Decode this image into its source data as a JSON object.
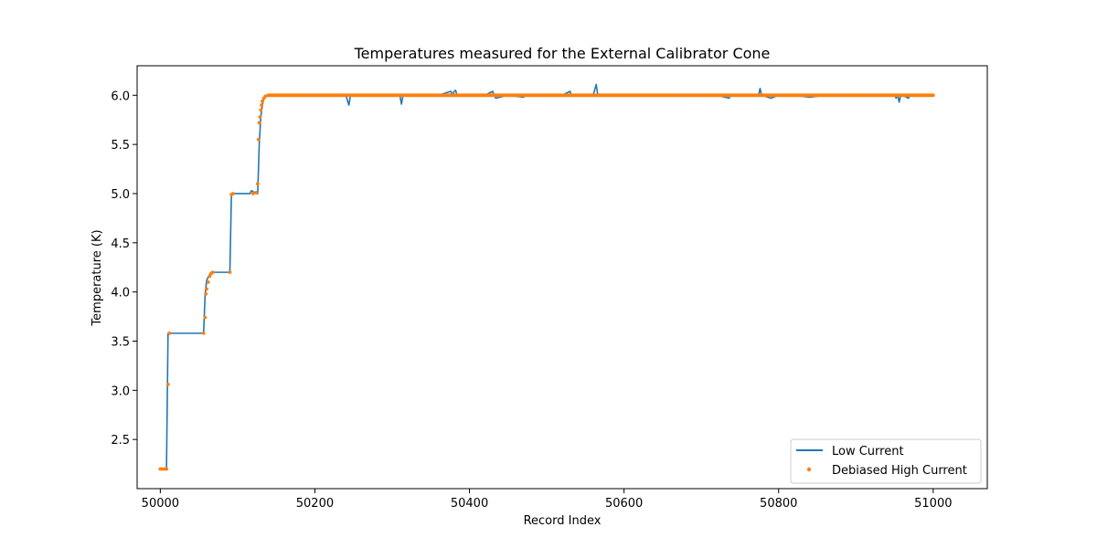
{
  "chart_data": {
    "type": "line",
    "title": "Temperatures measured for the External Calibrator Cone",
    "xlabel": "Record Index",
    "ylabel": "Temperature (K)",
    "xlim": [
      49970,
      51070
    ],
    "ylim": [
      2.0,
      6.3
    ],
    "xticks": [
      50000,
      50200,
      50400,
      50600,
      50800,
      51000
    ],
    "yticks": [
      2.5,
      3.0,
      3.5,
      4.0,
      4.5,
      5.0,
      5.5,
      6.0
    ],
    "xtick_labels": [
      "50000",
      "50200",
      "50400",
      "50600",
      "50800",
      "51000"
    ],
    "ytick_labels": [
      "2.5",
      "3.0",
      "3.5",
      "4.0",
      "4.5",
      "5.0",
      "5.5",
      "6.0"
    ],
    "grid": false,
    "legend_position": "lower-right",
    "colors": {
      "low_current": "#1f77b4",
      "high_current": "#ff7f0e"
    },
    "series": [
      {
        "name": "Low Current",
        "style": "line",
        "color": "#1f77b4",
        "x": [
          50000,
          50006,
          50008,
          50010,
          50012,
          50020,
          50040,
          50056,
          50058,
          50060,
          50064,
          50070,
          50080,
          50090,
          50092,
          50094,
          50100,
          50110,
          50116,
          50118,
          50124,
          50126,
          50128,
          50130,
          50132,
          50134,
          50136,
          50140,
          50150,
          50160,
          50180,
          50200,
          50220,
          50240,
          50244,
          50246,
          50260,
          50280,
          50300,
          50310,
          50312,
          50314,
          50340,
          50360,
          50376,
          50378,
          50380,
          50382,
          50384,
          50386,
          50400,
          50420,
          50430,
          50432,
          50434,
          50450,
          50470,
          50472,
          50474,
          50500,
          50520,
          50530,
          50532,
          50534,
          50560,
          50564,
          50566,
          50568,
          50580,
          50600,
          50620,
          50640,
          50660,
          50680,
          50700,
          50720,
          50736,
          50738,
          50740,
          50760,
          50774,
          50776,
          50778,
          50790,
          50800,
          50820,
          50840,
          50860,
          50880,
          50900,
          50920,
          50940,
          50950,
          50952,
          50954,
          50956,
          50958,
          50960,
          50968,
          50970,
          50972,
          50980,
          51000
        ],
        "y": [
          2.2,
          2.2,
          2.21,
          3.58,
          3.58,
          3.58,
          3.58,
          3.58,
          3.98,
          4.12,
          4.18,
          4.2,
          4.2,
          4.2,
          4.99,
          5.0,
          5.0,
          5.0,
          5.0,
          5.03,
          5.0,
          5.0,
          5.5,
          5.78,
          5.9,
          5.97,
          6.0,
          6.0,
          6.0,
          5.99,
          6.0,
          6.0,
          6.0,
          6.0,
          5.9,
          6.0,
          6.0,
          6.0,
          6.0,
          6.0,
          5.91,
          6.0,
          6.0,
          6.0,
          6.04,
          6.0,
          6.04,
          6.05,
          6.0,
          6.0,
          6.0,
          6.0,
          6.04,
          6.0,
          5.97,
          6.0,
          5.98,
          6.0,
          6.0,
          6.0,
          6.0,
          6.04,
          6.0,
          6.0,
          6.0,
          6.11,
          6.0,
          6.0,
          6.0,
          6.0,
          6.0,
          6.0,
          6.0,
          6.0,
          6.0,
          6.0,
          5.97,
          6.0,
          6.0,
          6.0,
          6.0,
          6.07,
          6.0,
          5.97,
          6.0,
          6.0,
          5.98,
          6.0,
          6.0,
          6.0,
          6.0,
          6.0,
          6.0,
          5.97,
          6.0,
          5.93,
          6.0,
          6.0,
          5.97,
          6.0,
          6.0,
          6.0,
          6.0
        ]
      },
      {
        "name": "Debiased High Current",
        "style": "scatter",
        "color": "#ff7f0e",
        "x": [
          50000,
          50003,
          50006,
          50008,
          50010,
          50012,
          50056,
          50058,
          50059,
          50060,
          50062,
          50064,
          50066,
          50068,
          50090,
          50092,
          50094,
          50120,
          50124,
          50126,
          50127,
          50128,
          50129,
          50130,
          50131,
          50132,
          50134,
          50136,
          50140
        ],
        "y": [
          2.2,
          2.2,
          2.2,
          2.2,
          3.06,
          3.58,
          3.58,
          3.74,
          3.98,
          4.03,
          4.1,
          4.16,
          4.19,
          4.2,
          4.2,
          4.99,
          5.0,
          5.0,
          5.01,
          5.1,
          5.55,
          5.72,
          5.78,
          5.85,
          5.9,
          5.94,
          5.97,
          5.99,
          6.0
        ],
        "steady_state": {
          "x_start": 50140,
          "x_end": 51000,
          "y": 6.0
        }
      }
    ]
  }
}
